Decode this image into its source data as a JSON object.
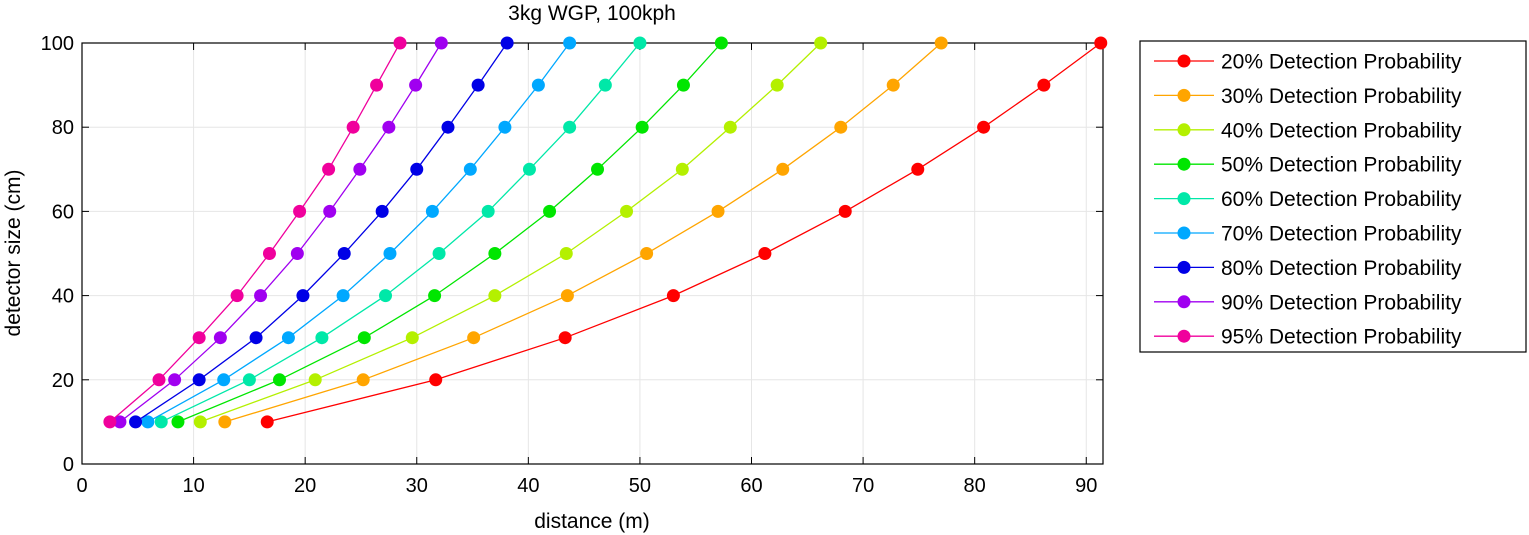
{
  "chart_data": {
    "type": "line",
    "title": "3kg WGP, 100kph",
    "xlabel": "distance (m)",
    "ylabel": "detector size (cm)",
    "xlim": [
      0,
      91.5
    ],
    "ylim": [
      0,
      100
    ],
    "xticks": [
      0,
      10,
      20,
      30,
      40,
      50,
      60,
      70,
      80,
      90
    ],
    "yticks": [
      0,
      20,
      40,
      60,
      80,
      100
    ],
    "grid": true,
    "legend_position": "outside-right",
    "y": [
      10,
      20,
      30,
      40,
      50,
      60,
      70,
      80,
      90,
      100
    ],
    "series": [
      {
        "name": "20% Detection Probability",
        "color": "#ff0000",
        "x": [
          16.6,
          31.7,
          43.3,
          53.0,
          61.2,
          68.4,
          74.9,
          80.8,
          86.2,
          91.3
        ]
      },
      {
        "name": "30% Detection Probability",
        "color": "#ffa500",
        "x": [
          12.8,
          25.2,
          35.1,
          43.5,
          50.6,
          57.0,
          62.8,
          68.0,
          72.7,
          77.0
        ]
      },
      {
        "name": "40% Detection Probability",
        "color": "#b4f000",
        "x": [
          10.6,
          20.9,
          29.6,
          37.0,
          43.4,
          48.8,
          53.8,
          58.1,
          62.3,
          66.2
        ]
      },
      {
        "name": "50% Detection Probability",
        "color": "#00e600",
        "x": [
          8.6,
          17.7,
          25.3,
          31.6,
          37.0,
          41.9,
          46.2,
          50.2,
          53.9,
          57.3
        ]
      },
      {
        "name": "60% Detection Probability",
        "color": "#00e8a8",
        "x": [
          7.1,
          15.0,
          21.5,
          27.2,
          32.0,
          36.4,
          40.1,
          43.7,
          46.9,
          50.0
        ]
      },
      {
        "name": "70% Detection Probability",
        "color": "#00a8ff",
        "x": [
          5.9,
          12.7,
          18.5,
          23.4,
          27.6,
          31.4,
          34.8,
          37.9,
          40.9,
          43.7
        ]
      },
      {
        "name": "80% Detection Probability",
        "color": "#0000e6",
        "x": [
          4.8,
          10.5,
          15.6,
          19.8,
          23.5,
          26.9,
          30.0,
          32.8,
          35.5,
          38.1
        ]
      },
      {
        "name": "90% Detection Probability",
        "color": "#a000f0",
        "x": [
          3.4,
          8.3,
          12.4,
          16.0,
          19.3,
          22.2,
          24.9,
          27.5,
          29.9,
          32.2
        ]
      },
      {
        "name": "95% Detection Probability",
        "color": "#f0009c",
        "x": [
          2.5,
          6.9,
          10.5,
          13.9,
          16.8,
          19.5,
          22.1,
          24.3,
          26.4,
          28.5
        ]
      }
    ]
  }
}
